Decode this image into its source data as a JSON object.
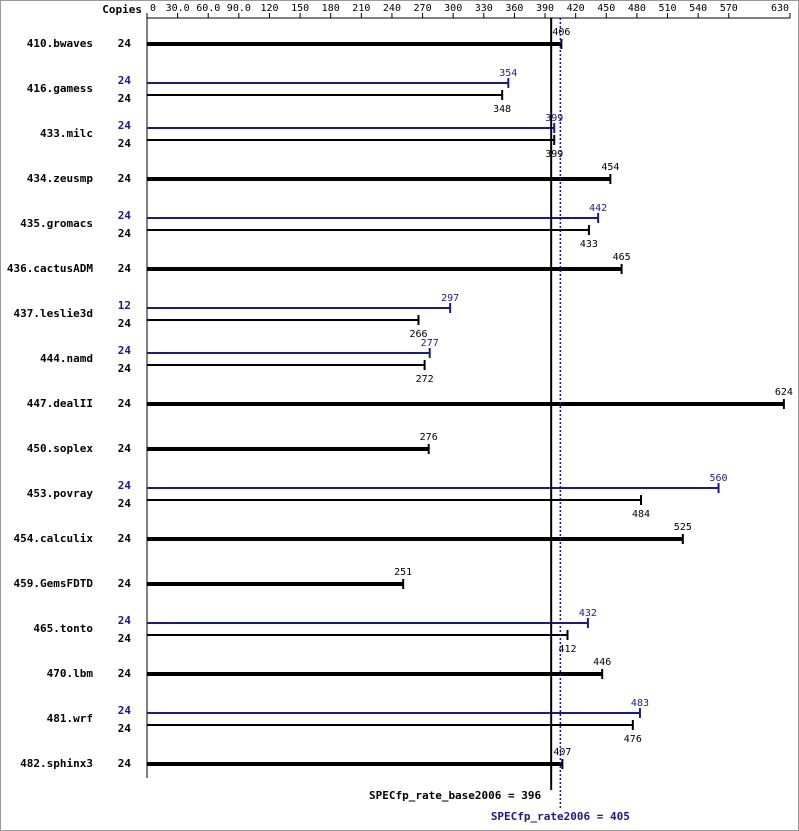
{
  "chart_data": {
    "type": "bar",
    "orientation": "horizontal",
    "copies_label": "Copies",
    "categories": [
      "410.bwaves",
      "416.gamess",
      "433.milc",
      "434.zeusmp",
      "435.gromacs",
      "436.cactusADM",
      "437.leslie3d",
      "444.namd",
      "447.dealII",
      "450.soplex",
      "453.povray",
      "454.calculix",
      "459.GemsFDTD",
      "465.tonto",
      "470.lbm",
      "481.wrf",
      "482.sphinx3"
    ],
    "series": [
      {
        "name": "SPECfp_rate_base2006",
        "color": "#000000",
        "copies": [
          24,
          24,
          24,
          24,
          24,
          24,
          24,
          24,
          24,
          24,
          24,
          24,
          24,
          24,
          24,
          24,
          24
        ],
        "values": [
          406,
          348,
          399,
          454,
          433,
          465,
          266,
          272,
          624,
          276,
          484,
          525,
          251,
          412,
          446,
          476,
          407
        ]
      },
      {
        "name": "SPECfp_rate2006",
        "color": "#1a1a8c",
        "copies": [
          null,
          24,
          24,
          null,
          24,
          null,
          12,
          24,
          null,
          null,
          24,
          null,
          null,
          24,
          null,
          24,
          null
        ],
        "values": [
          null,
          354,
          399,
          null,
          442,
          null,
          297,
          277,
          null,
          null,
          560,
          null,
          null,
          432,
          null,
          483,
          null
        ]
      }
    ],
    "reference_lines": [
      {
        "label": "SPECfp_rate_base2006 = 396",
        "value": 396,
        "color": "#000000",
        "style": "solid"
      },
      {
        "label": "SPECfp_rate2006 = 405",
        "value": 405,
        "color": "#1a1a8c",
        "style": "dotted"
      }
    ],
    "xlim": [
      0,
      630
    ],
    "xticks": [
      0,
      {
        "value": 30,
        "label": "30.0"
      },
      {
        "value": 60,
        "label": "60.0"
      },
      {
        "value": 90,
        "label": "90.0"
      },
      120,
      150,
      180,
      210,
      240,
      270,
      300,
      330,
      360,
      390,
      420,
      450,
      480,
      510,
      540,
      570,
      630
    ],
    "grid": false
  }
}
